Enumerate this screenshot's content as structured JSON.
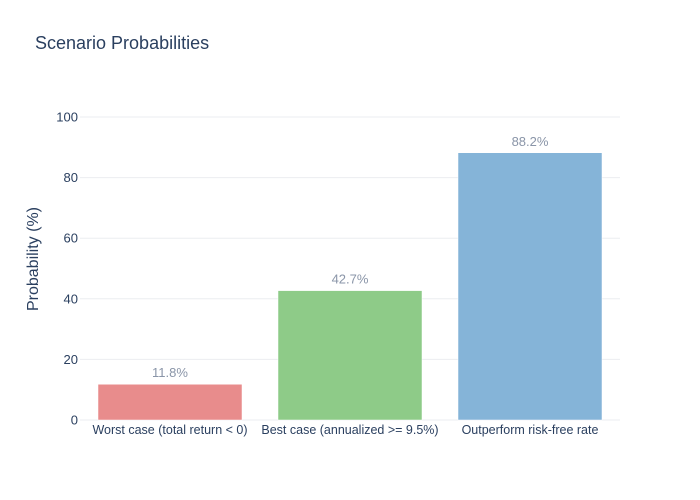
{
  "chart_data": {
    "type": "bar",
    "title": "Scenario Probabilities",
    "xlabel": "",
    "ylabel": "Probability (%)",
    "categories": [
      "Worst case (total return < 0)",
      "Best case (annualized >= 9.5%)",
      "Outperform risk-free rate"
    ],
    "values": [
      11.8,
      42.7,
      88.2
    ],
    "data_labels": [
      "11.8%",
      "42.7%",
      "88.2%"
    ],
    "colors": [
      "#e88c8c",
      "#8ecb88",
      "#85b4d8"
    ],
    "ylim": [
      0,
      100
    ],
    "yticks": [
      0,
      20,
      40,
      60,
      80,
      100
    ],
    "grid": true,
    "legend": "none"
  }
}
